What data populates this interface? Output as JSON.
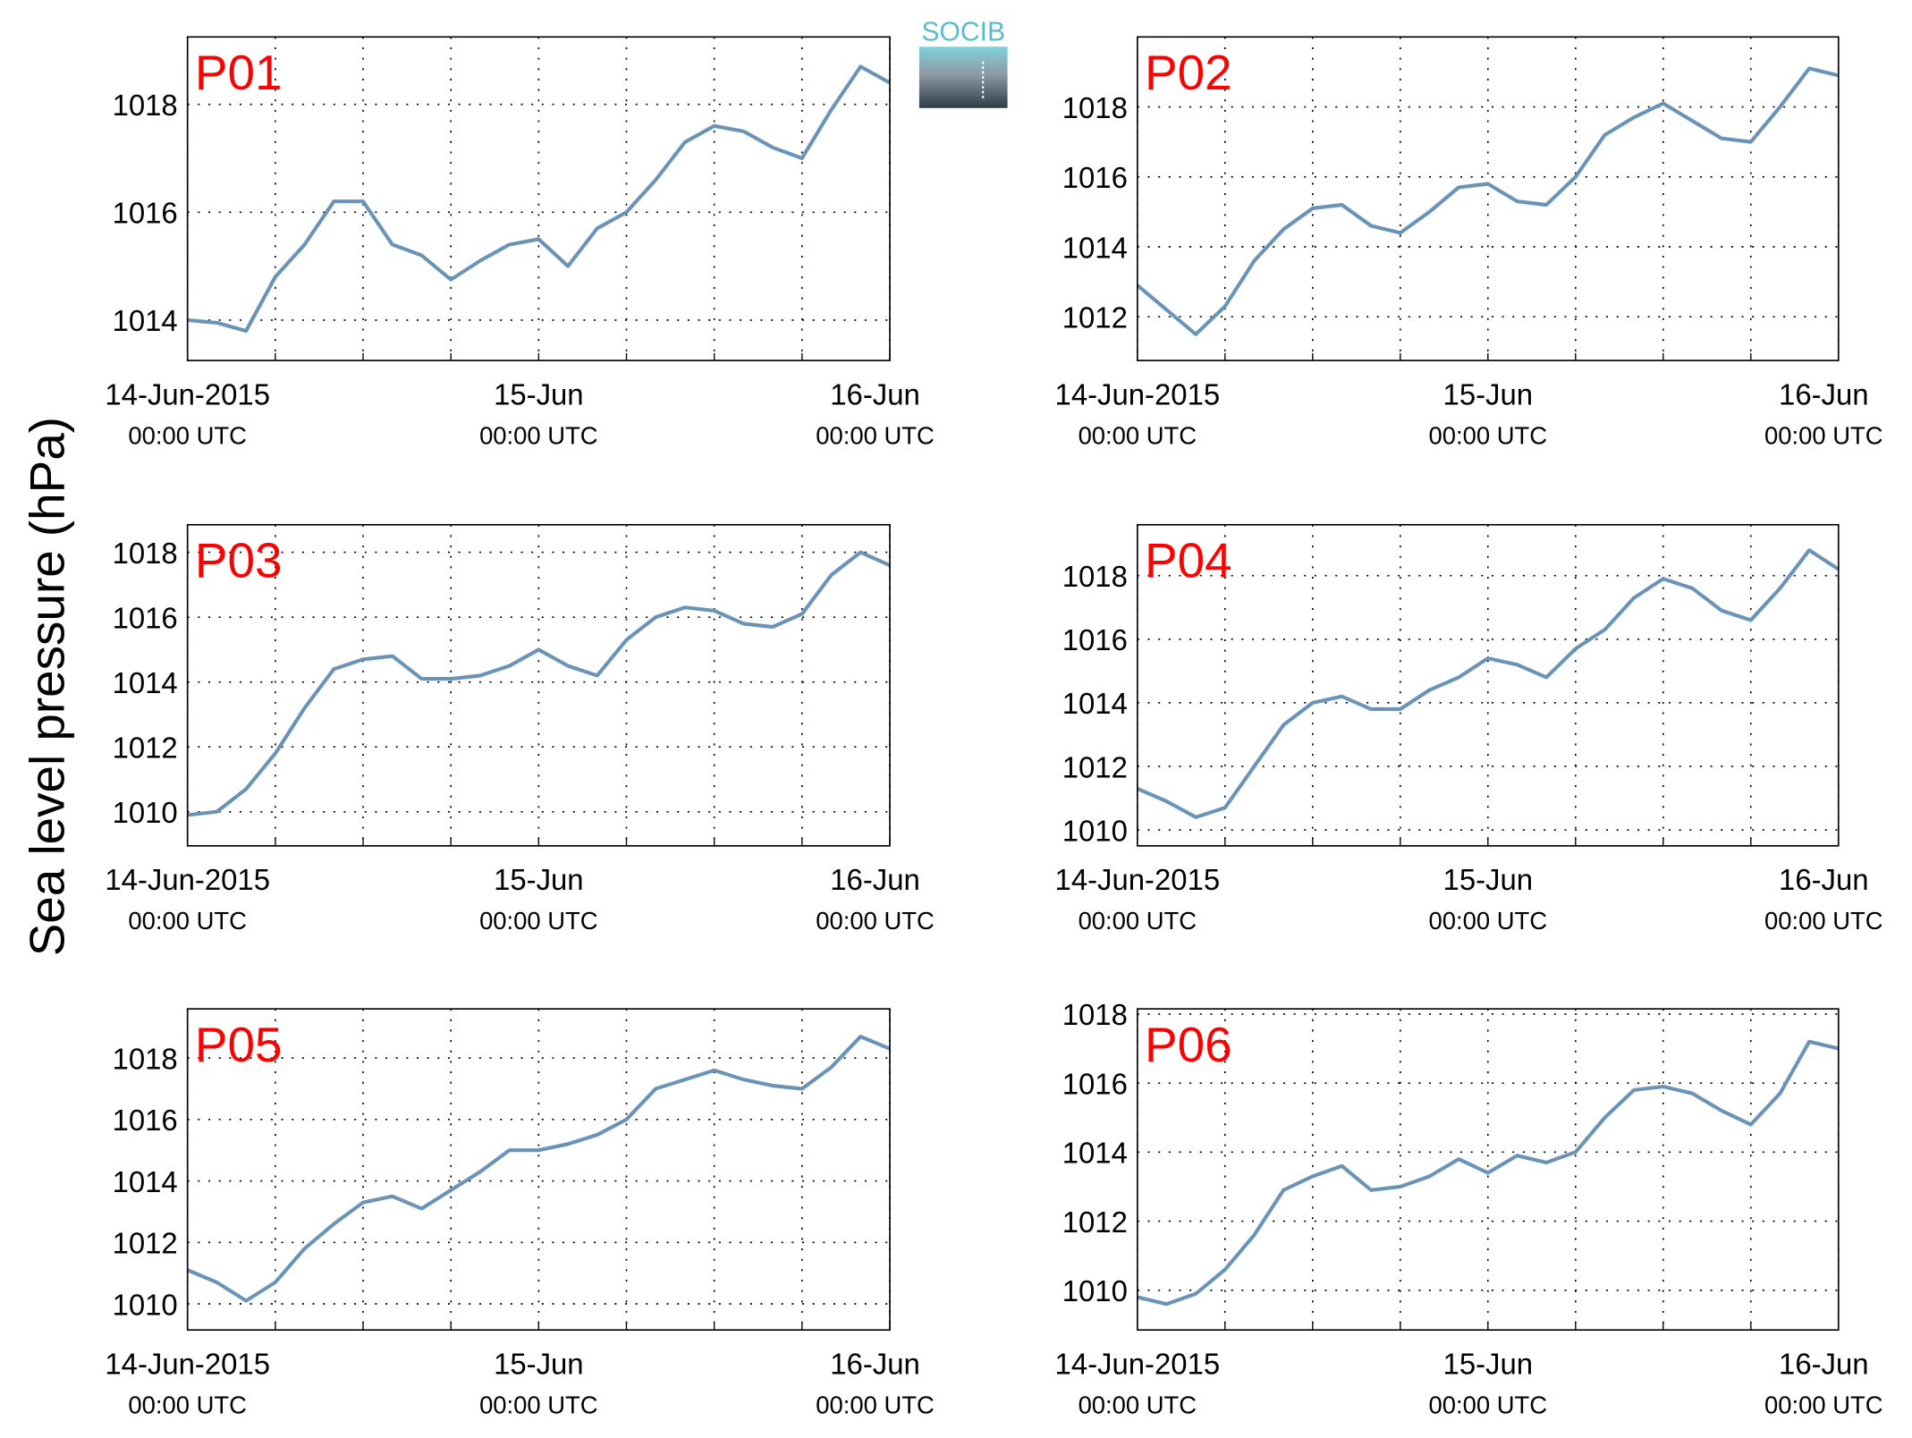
{
  "ylabel": "Sea level pressure (hPa)",
  "logo": "SOCIB",
  "chart_data": [
    {
      "type": "line",
      "title": "P01",
      "color": "#6a93b8",
      "grid": true,
      "x": [
        "2015-06-14T00:00",
        "2015-06-14T02:00",
        "2015-06-14T04:00",
        "2015-06-14T06:00",
        "2015-06-14T08:00",
        "2015-06-14T10:00",
        "2015-06-14T12:00",
        "2015-06-14T14:00",
        "2015-06-14T16:00",
        "2015-06-14T18:00",
        "2015-06-14T20:00",
        "2015-06-14T22:00",
        "2015-06-15T00:00",
        "2015-06-15T02:00",
        "2015-06-15T04:00",
        "2015-06-15T06:00",
        "2015-06-15T08:00",
        "2015-06-15T10:00",
        "2015-06-15T12:00",
        "2015-06-15T14:00",
        "2015-06-15T16:00",
        "2015-06-15T18:00",
        "2015-06-15T20:00",
        "2015-06-15T22:00",
        "2015-06-16T00:00"
      ],
      "values": [
        1014.0,
        1013.95,
        1013.8,
        1014.8,
        1015.4,
        1016.2,
        1016.2,
        1015.4,
        1015.2,
        1014.75,
        1015.1,
        1015.4,
        1015.5,
        1015.0,
        1015.7,
        1016.0,
        1016.6,
        1017.3,
        1017.6,
        1017.5,
        1017.2,
        1017.0,
        1017.9,
        1018.7,
        1018.4
      ],
      "xlim": [
        "2015-06-14T00:00",
        "2015-06-16T00:00"
      ],
      "xticks": [
        {
          "value": "2015-06-14T00:00",
          "label": "14-Jun-2015",
          "sublabel": "00:00 UTC"
        },
        {
          "value": "2015-06-14T06:00"
        },
        {
          "value": "2015-06-14T12:00"
        },
        {
          "value": "2015-06-14T18:00"
        },
        {
          "value": "2015-06-15T00:00",
          "label": "15-Jun",
          "sublabel": "00:00 UTC"
        },
        {
          "value": "2015-06-15T06:00"
        },
        {
          "value": "2015-06-15T12:00"
        },
        {
          "value": "2015-06-15T18:00"
        },
        {
          "value": "2015-06-16T00:00",
          "label": "16-Jun",
          "sublabel": "00:00 UTC"
        }
      ],
      "ylim": [
        1013.25,
        1019.25
      ],
      "yticks": [
        1014,
        1016,
        1018
      ]
    },
    {
      "type": "line",
      "title": "P02",
      "color": "#6a93b8",
      "grid": true,
      "x": [
        "2015-06-14T00:00",
        "2015-06-14T02:00",
        "2015-06-14T04:00",
        "2015-06-14T06:00",
        "2015-06-14T08:00",
        "2015-06-14T10:00",
        "2015-06-14T12:00",
        "2015-06-14T14:00",
        "2015-06-14T16:00",
        "2015-06-14T18:00",
        "2015-06-14T20:00",
        "2015-06-14T22:00",
        "2015-06-15T00:00",
        "2015-06-15T02:00",
        "2015-06-15T04:00",
        "2015-06-15T06:00",
        "2015-06-15T08:00",
        "2015-06-15T10:00",
        "2015-06-15T12:00",
        "2015-06-15T14:00",
        "2015-06-15T16:00",
        "2015-06-15T18:00",
        "2015-06-15T20:00",
        "2015-06-15T22:00",
        "2015-06-16T00:00"
      ],
      "values": [
        1012.9,
        1012.2,
        1011.5,
        1012.3,
        1013.6,
        1014.5,
        1015.1,
        1015.2,
        1014.6,
        1014.4,
        1015.0,
        1015.7,
        1015.8,
        1015.3,
        1015.2,
        1016.0,
        1017.2,
        1017.7,
        1018.1,
        1017.6,
        1017.1,
        1017.0,
        1018.0,
        1019.1,
        1018.9
      ],
      "xlim": [
        "2015-06-14T00:00",
        "2015-06-16T00:00"
      ],
      "xticks": [
        {
          "value": "2015-06-14T00:00",
          "label": "14-Jun-2015",
          "sublabel": "00:00 UTC"
        },
        {
          "value": "2015-06-14T06:00"
        },
        {
          "value": "2015-06-14T12:00"
        },
        {
          "value": "2015-06-14T18:00"
        },
        {
          "value": "2015-06-15T00:00",
          "label": "15-Jun",
          "sublabel": "00:00 UTC"
        },
        {
          "value": "2015-06-15T06:00"
        },
        {
          "value": "2015-06-15T12:00"
        },
        {
          "value": "2015-06-15T18:00"
        },
        {
          "value": "2015-06-16T00:00",
          "label": "16-Jun",
          "sublabel": "00:00 UTC"
        }
      ],
      "ylim": [
        1010.75,
        1020.0
      ],
      "yticks": [
        1012,
        1014,
        1016,
        1018
      ]
    },
    {
      "type": "line",
      "title": "P03",
      "color": "#6a93b8",
      "grid": true,
      "x": [
        "2015-06-14T00:00",
        "2015-06-14T02:00",
        "2015-06-14T04:00",
        "2015-06-14T06:00",
        "2015-06-14T08:00",
        "2015-06-14T10:00",
        "2015-06-14T12:00",
        "2015-06-14T14:00",
        "2015-06-14T16:00",
        "2015-06-14T18:00",
        "2015-06-14T20:00",
        "2015-06-14T22:00",
        "2015-06-15T00:00",
        "2015-06-15T02:00",
        "2015-06-15T04:00",
        "2015-06-15T06:00",
        "2015-06-15T08:00",
        "2015-06-15T10:00",
        "2015-06-15T12:00",
        "2015-06-15T14:00",
        "2015-06-15T16:00",
        "2015-06-15T18:00",
        "2015-06-15T20:00",
        "2015-06-15T22:00",
        "2015-06-16T00:00"
      ],
      "values": [
        1009.9,
        1010.0,
        1010.7,
        1011.8,
        1013.2,
        1014.4,
        1014.7,
        1014.8,
        1014.1,
        1014.1,
        1014.2,
        1014.5,
        1015.0,
        1014.5,
        1014.2,
        1015.3,
        1016.0,
        1016.3,
        1016.2,
        1015.8,
        1015.7,
        1016.1,
        1017.3,
        1018.0,
        1017.6
      ],
      "xlim": [
        "2015-06-14T00:00",
        "2015-06-16T00:00"
      ],
      "xticks": [
        {
          "value": "2015-06-14T00:00",
          "label": "14-Jun-2015",
          "sublabel": "00:00 UTC"
        },
        {
          "value": "2015-06-14T06:00"
        },
        {
          "value": "2015-06-14T12:00"
        },
        {
          "value": "2015-06-14T18:00"
        },
        {
          "value": "2015-06-15T00:00",
          "label": "15-Jun",
          "sublabel": "00:00 UTC"
        },
        {
          "value": "2015-06-15T06:00"
        },
        {
          "value": "2015-06-15T12:00"
        },
        {
          "value": "2015-06-15T18:00"
        },
        {
          "value": "2015-06-16T00:00",
          "label": "16-Jun",
          "sublabel": "00:00 UTC"
        }
      ],
      "ylim": [
        1008.95,
        1018.85
      ],
      "yticks": [
        1010,
        1012,
        1014,
        1016,
        1018
      ]
    },
    {
      "type": "line",
      "title": "P04",
      "color": "#6a93b8",
      "grid": true,
      "x": [
        "2015-06-14T00:00",
        "2015-06-14T02:00",
        "2015-06-14T04:00",
        "2015-06-14T06:00",
        "2015-06-14T08:00",
        "2015-06-14T10:00",
        "2015-06-14T12:00",
        "2015-06-14T14:00",
        "2015-06-14T16:00",
        "2015-06-14T18:00",
        "2015-06-14T20:00",
        "2015-06-14T22:00",
        "2015-06-15T00:00",
        "2015-06-15T02:00",
        "2015-06-15T04:00",
        "2015-06-15T06:00",
        "2015-06-15T08:00",
        "2015-06-15T10:00",
        "2015-06-15T12:00",
        "2015-06-15T14:00",
        "2015-06-15T16:00",
        "2015-06-15T18:00",
        "2015-06-15T20:00",
        "2015-06-15T22:00",
        "2015-06-16T00:00"
      ],
      "values": [
        1011.3,
        1010.9,
        1010.4,
        1010.7,
        1012.0,
        1013.3,
        1014.0,
        1014.2,
        1013.8,
        1013.8,
        1014.4,
        1014.8,
        1015.4,
        1015.2,
        1014.8,
        1015.7,
        1016.3,
        1017.3,
        1017.9,
        1017.6,
        1016.9,
        1016.6,
        1017.6,
        1018.8,
        1018.2
      ],
      "xlim": [
        "2015-06-14T00:00",
        "2015-06-16T00:00"
      ],
      "xticks": [
        {
          "value": "2015-06-14T00:00",
          "label": "14-Jun-2015",
          "sublabel": "00:00 UTC"
        },
        {
          "value": "2015-06-14T06:00"
        },
        {
          "value": "2015-06-14T12:00"
        },
        {
          "value": "2015-06-14T18:00"
        },
        {
          "value": "2015-06-15T00:00",
          "label": "15-Jun",
          "sublabel": "00:00 UTC"
        },
        {
          "value": "2015-06-15T06:00"
        },
        {
          "value": "2015-06-15T12:00"
        },
        {
          "value": "2015-06-15T18:00"
        },
        {
          "value": "2015-06-16T00:00",
          "label": "16-Jun",
          "sublabel": "00:00 UTC"
        }
      ],
      "ylim": [
        1009.5,
        1019.6
      ],
      "yticks": [
        1010,
        1012,
        1014,
        1016,
        1018
      ]
    },
    {
      "type": "line",
      "title": "P05",
      "color": "#6a93b8",
      "grid": true,
      "x": [
        "2015-06-14T00:00",
        "2015-06-14T02:00",
        "2015-06-14T04:00",
        "2015-06-14T06:00",
        "2015-06-14T08:00",
        "2015-06-14T10:00",
        "2015-06-14T12:00",
        "2015-06-14T14:00",
        "2015-06-14T16:00",
        "2015-06-14T18:00",
        "2015-06-14T20:00",
        "2015-06-14T22:00",
        "2015-06-15T00:00",
        "2015-06-15T02:00",
        "2015-06-15T04:00",
        "2015-06-15T06:00",
        "2015-06-15T08:00",
        "2015-06-15T10:00",
        "2015-06-15T12:00",
        "2015-06-15T14:00",
        "2015-06-15T16:00",
        "2015-06-15T18:00",
        "2015-06-15T20:00",
        "2015-06-15T22:00",
        "2015-06-16T00:00"
      ],
      "values": [
        1011.1,
        1010.7,
        1010.1,
        1010.7,
        1011.8,
        1012.6,
        1013.3,
        1013.5,
        1013.1,
        1013.7,
        1014.3,
        1015.0,
        1015.0,
        1015.2,
        1015.5,
        1016.0,
        1017.0,
        1017.3,
        1017.6,
        1017.3,
        1017.1,
        1017.0,
        1017.7,
        1018.7,
        1018.3
      ],
      "xlim": [
        "2015-06-14T00:00",
        "2015-06-16T00:00"
      ],
      "xticks": [
        {
          "value": "2015-06-14T00:00",
          "label": "14-Jun-2015",
          "sublabel": "00:00 UTC"
        },
        {
          "value": "2015-06-14T06:00"
        },
        {
          "value": "2015-06-14T12:00"
        },
        {
          "value": "2015-06-14T18:00"
        },
        {
          "value": "2015-06-15T00:00",
          "label": "15-Jun",
          "sublabel": "00:00 UTC"
        },
        {
          "value": "2015-06-15T06:00"
        },
        {
          "value": "2015-06-15T12:00"
        },
        {
          "value": "2015-06-15T18:00"
        },
        {
          "value": "2015-06-16T00:00",
          "label": "16-Jun",
          "sublabel": "00:00 UTC"
        }
      ],
      "ylim": [
        1009.15,
        1019.6
      ],
      "yticks": [
        1010,
        1012,
        1014,
        1016,
        1018
      ]
    },
    {
      "type": "line",
      "title": "P06",
      "color": "#6a93b8",
      "grid": true,
      "x": [
        "2015-06-14T00:00",
        "2015-06-14T02:00",
        "2015-06-14T04:00",
        "2015-06-14T06:00",
        "2015-06-14T08:00",
        "2015-06-14T10:00",
        "2015-06-14T12:00",
        "2015-06-14T14:00",
        "2015-06-14T16:00",
        "2015-06-14T18:00",
        "2015-06-14T20:00",
        "2015-06-14T22:00",
        "2015-06-15T00:00",
        "2015-06-15T02:00",
        "2015-06-15T04:00",
        "2015-06-15T06:00",
        "2015-06-15T08:00",
        "2015-06-15T10:00",
        "2015-06-15T12:00",
        "2015-06-15T14:00",
        "2015-06-15T16:00",
        "2015-06-15T18:00",
        "2015-06-15T20:00",
        "2015-06-15T22:00",
        "2015-06-16T00:00"
      ],
      "values": [
        1009.8,
        1009.6,
        1009.9,
        1010.6,
        1011.6,
        1012.9,
        1013.3,
        1013.6,
        1012.9,
        1013.0,
        1013.3,
        1013.8,
        1013.4,
        1013.9,
        1013.7,
        1014.0,
        1015.0,
        1015.8,
        1015.9,
        1015.7,
        1015.2,
        1014.8,
        1015.7,
        1017.2,
        1017.0
      ],
      "xlim": [
        "2015-06-14T00:00",
        "2015-06-16T00:00"
      ],
      "xticks": [
        {
          "value": "2015-06-14T00:00",
          "label": "14-Jun-2015",
          "sublabel": "00:00 UTC"
        },
        {
          "value": "2015-06-14T06:00"
        },
        {
          "value": "2015-06-14T12:00"
        },
        {
          "value": "2015-06-14T18:00"
        },
        {
          "value": "2015-06-15T00:00",
          "label": "15-Jun",
          "sublabel": "00:00 UTC"
        },
        {
          "value": "2015-06-15T06:00"
        },
        {
          "value": "2015-06-15T12:00"
        },
        {
          "value": "2015-06-15T18:00"
        },
        {
          "value": "2015-06-16T00:00",
          "label": "16-Jun",
          "sublabel": "00:00 UTC"
        }
      ],
      "ylim": [
        1008.85,
        1018.15
      ],
      "yticks": [
        1010,
        1012,
        1014,
        1016,
        1018
      ]
    }
  ]
}
